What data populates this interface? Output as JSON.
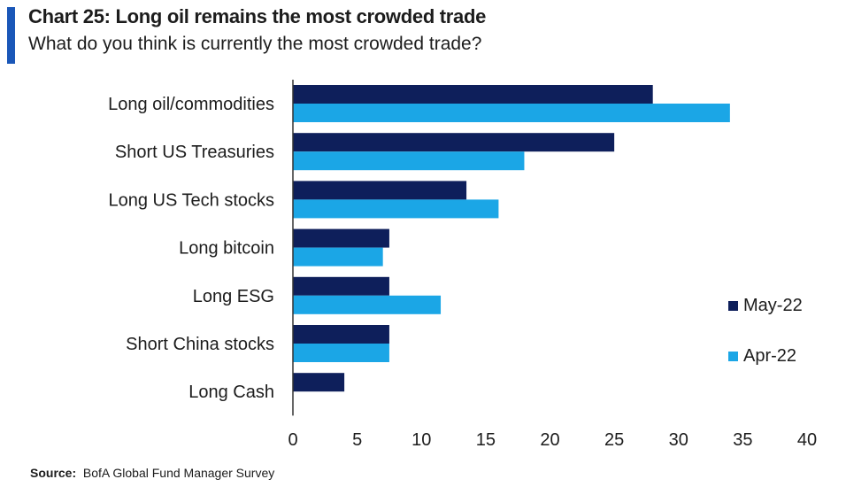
{
  "header": {
    "title": "Chart 25: Long oil remains the most crowded trade",
    "subtitle": "What do you think is currently the most crowded trade?"
  },
  "footer": {
    "source_label": "Source:",
    "source_text": "BofA Global Fund Manager Survey"
  },
  "colors": {
    "accent": "#1a57b8",
    "may": "#0e1f5b",
    "apr": "#1ba6e6"
  },
  "chart_data": {
    "type": "bar",
    "orientation": "horizontal",
    "categories": [
      "Long oil/commodities",
      "Short US Treasuries",
      "Long US Tech stocks",
      "Long bitcoin",
      "Long ESG",
      "Short China stocks",
      "Long Cash"
    ],
    "series": [
      {
        "name": "May-22",
        "values": [
          28,
          25,
          13.5,
          7.5,
          7.5,
          7.5,
          4
        ],
        "color": "#0e1f5b"
      },
      {
        "name": "Apr-22",
        "values": [
          34,
          18,
          16,
          7,
          11.5,
          7.5,
          0
        ],
        "color": "#1ba6e6"
      }
    ],
    "xlim": [
      0,
      40
    ],
    "xticks": [
      0,
      5,
      10,
      15,
      20,
      25,
      30,
      35,
      40
    ],
    "grid": false,
    "legend_position": "right"
  }
}
